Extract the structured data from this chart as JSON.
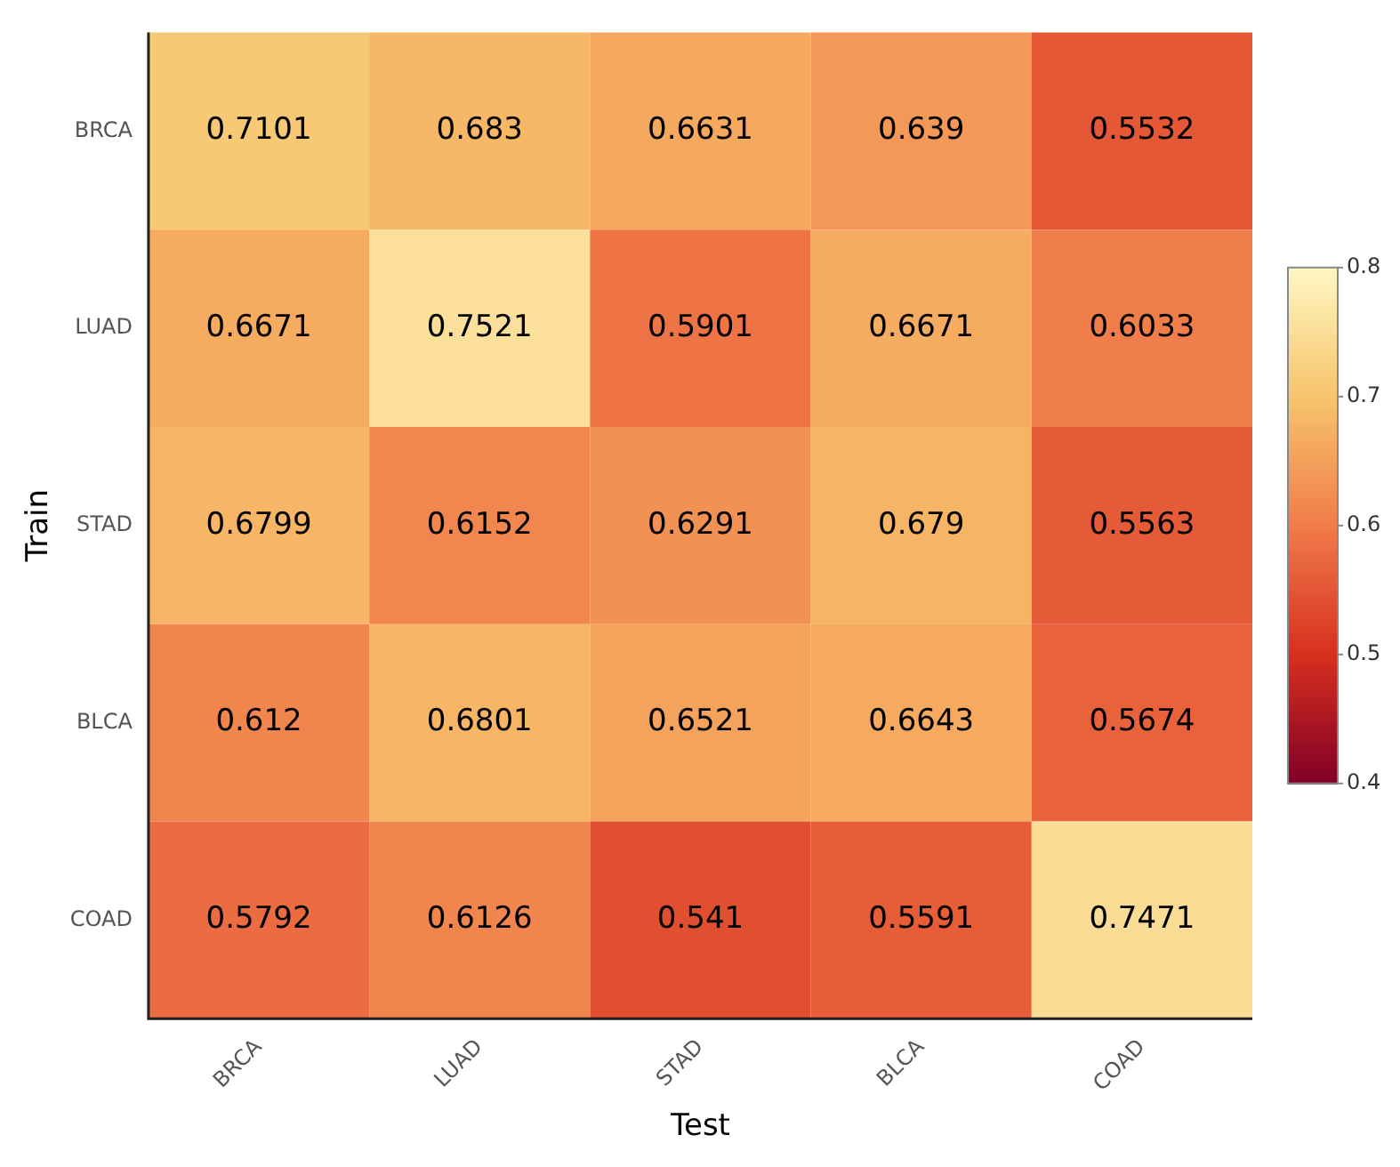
{
  "chart_data": {
    "type": "heatmap",
    "xlabel": "Test",
    "ylabel": "Train",
    "categories": [
      "BRCA",
      "LUAD",
      "STAD",
      "BLCA",
      "COAD"
    ],
    "y_categories": [
      "BRCA",
      "LUAD",
      "STAD",
      "BLCA",
      "COAD"
    ],
    "cells": [
      [
        0.7101,
        0.683,
        0.6631,
        0.639,
        0.5532
      ],
      [
        0.6671,
        0.7521,
        0.5901,
        0.6671,
        0.6033
      ],
      [
        0.6799,
        0.6152,
        0.6291,
        0.679,
        0.5563
      ],
      [
        0.612,
        0.6801,
        0.6521,
        0.6643,
        0.5674
      ],
      [
        0.5792,
        0.6126,
        0.541,
        0.5591,
        0.7471
      ]
    ],
    "data_labels": true,
    "clim": [
      0.4,
      0.8
    ],
    "cticks": [
      0.4,
      0.5,
      0.6,
      0.7,
      0.8
    ],
    "grid": false,
    "legend": false
  }
}
